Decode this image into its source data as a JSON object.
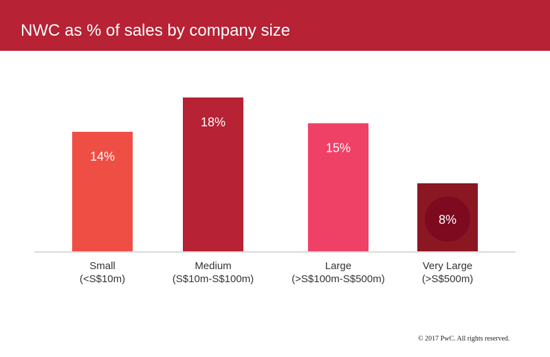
{
  "header": {
    "title": "NWC as % of sales by company size"
  },
  "chart_data": {
    "type": "bar",
    "categories": [
      [
        "Small",
        "(<S$10m)"
      ],
      [
        "Medium",
        "(S$10m-S$100m)"
      ],
      [
        "Large",
        "(>S$100m-S$500m)"
      ],
      [
        "Very Large",
        "(>S$500m)"
      ]
    ],
    "values": [
      14,
      18,
      15,
      8
    ],
    "data_labels": [
      "14%",
      "18%",
      "15%",
      "8%"
    ],
    "colors": [
      "#EF4E45",
      "#B72234",
      "#EF4166",
      "#8A1722"
    ],
    "ylim": [
      0,
      20
    ],
    "grid": false,
    "legend": "none",
    "xlabel": "",
    "ylabel": ""
  },
  "footer": {
    "copyright": "© 2017 PwC. All rights reserved."
  },
  "colors": {
    "header_bg": "#B72234",
    "axis": "#D9D9D9",
    "highlight_circle": "#7D0A1F"
  }
}
